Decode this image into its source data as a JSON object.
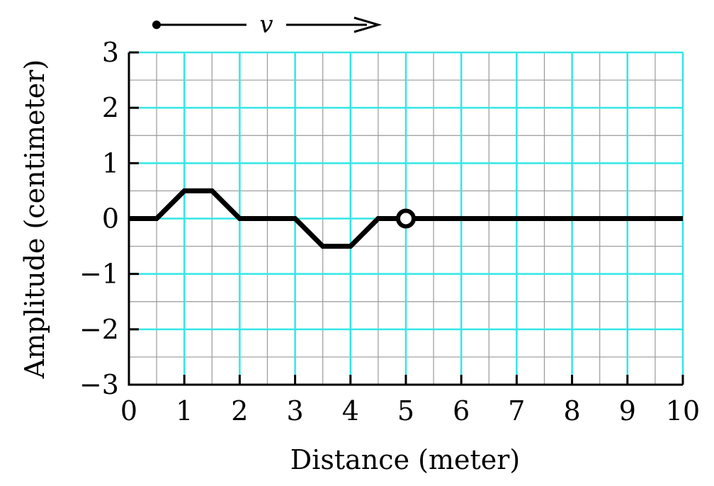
{
  "chart_data": {
    "type": "line",
    "xlabel": "Distance (meter)",
    "ylabel": "Amplitude (centimeter)",
    "xlim": [
      0,
      10
    ],
    "ylim": [
      -3,
      3
    ],
    "x_ticks": [
      "0",
      "1",
      "2",
      "3",
      "4",
      "5",
      "6",
      "7",
      "8",
      "9",
      "10"
    ],
    "y_ticks": [
      "3",
      "2",
      "1",
      "0",
      "−1",
      "−2",
      "−3"
    ],
    "grid": true,
    "grid_minor_step": 0.5,
    "colors": {
      "major_grid": "#33e6e6",
      "minor_grid": "#999999",
      "curve": "#000000"
    },
    "series": [
      {
        "x": [
          0,
          0.5,
          1,
          1.5,
          2,
          3,
          3.5,
          4,
          4.5,
          5,
          10
        ],
        "y": [
          0,
          0,
          0.5,
          0.5,
          0,
          0,
          -0.5,
          -0.5,
          0,
          0,
          0
        ]
      }
    ],
    "annotations": {
      "endpoint_marker": {
        "x": 5,
        "y": 0,
        "shape": "open-circle"
      },
      "velocity_arrow": {
        "label": "v",
        "direction": "right"
      }
    }
  }
}
